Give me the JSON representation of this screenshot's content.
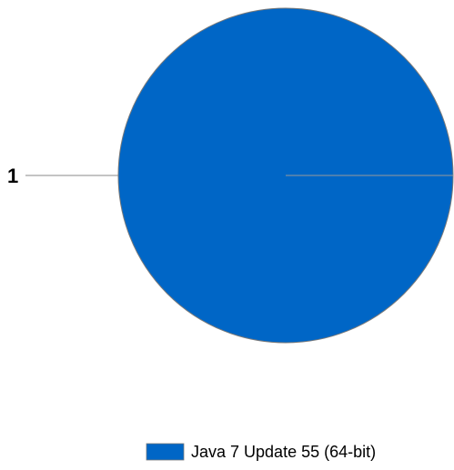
{
  "chart_data": {
    "type": "pie",
    "title": "",
    "categories": [
      "Java 7 Update 55 (64-bit)"
    ],
    "values": [
      1
    ],
    "data_labels": [
      "1"
    ],
    "colors": [
      "#0066c6"
    ],
    "legend_position": "bottom"
  }
}
